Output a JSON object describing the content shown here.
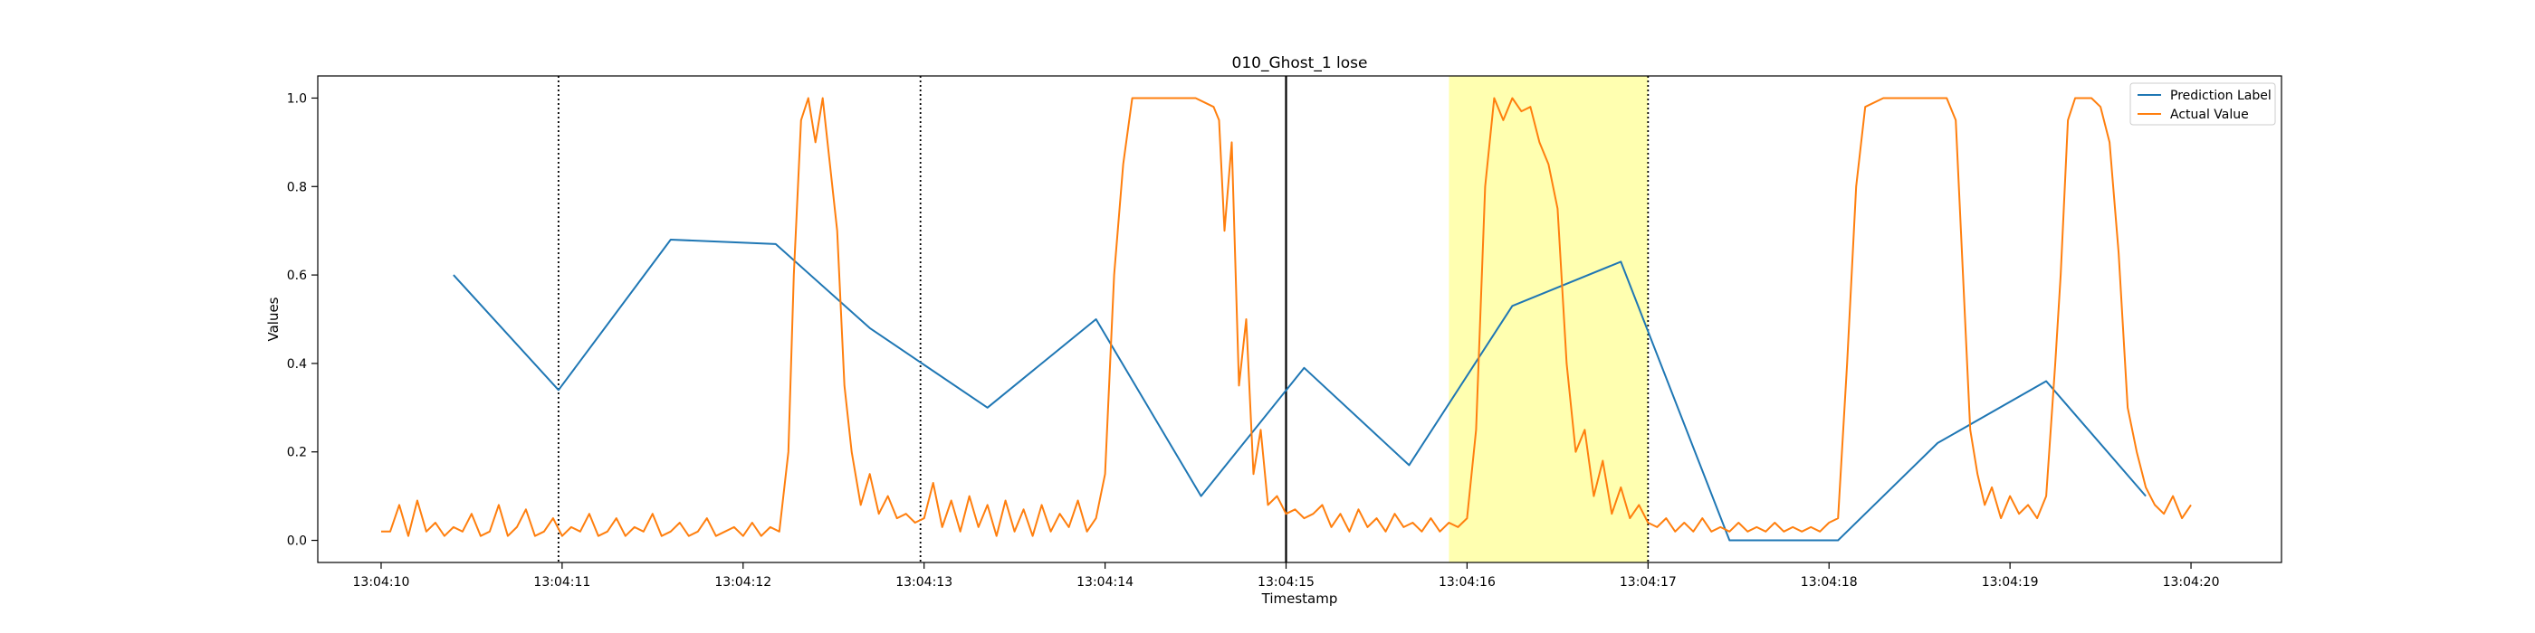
{
  "chart_data": {
    "type": "line",
    "title": "010_Ghost_1 lose",
    "xlabel": "Timestamp",
    "ylabel": "Values",
    "xlim": [
      "13:04:09.65",
      "13:04:20.50"
    ],
    "ylim": [
      -0.05,
      1.05
    ],
    "x_ticks": [
      "13:04:10",
      "13:04:11",
      "13:04:12",
      "13:04:13",
      "13:04:14",
      "13:04:15",
      "13:04:16",
      "13:04:17",
      "13:04:18",
      "13:04:19",
      "13:04:20"
    ],
    "y_ticks": [
      "0.0",
      "0.2",
      "0.4",
      "0.6",
      "0.8",
      "1.0"
    ],
    "grid": false,
    "legend_position": "top-right",
    "highlight_span": {
      "x_start": "13:04:15.90",
      "x_end": "13:04:17.00",
      "color": "#ffffb0"
    },
    "vertical_lines": [
      {
        "x": "13:04:10.98",
        "style": "dotted",
        "color": "#000000"
      },
      {
        "x": "13:04:12.98",
        "style": "dotted",
        "color": "#000000"
      },
      {
        "x": "13:04:15.00",
        "style": "solid",
        "color": "#000000"
      },
      {
        "x": "13:04:17.00",
        "style": "dotted",
        "color": "#000000"
      }
    ],
    "series": [
      {
        "name": "Prediction Label",
        "color": "#1f77b4",
        "x": [
          "13:04:10.40",
          "13:04:10.98",
          "13:04:11.60",
          "13:04:12.18",
          "13:04:12.70",
          "13:04:13.35",
          "13:04:13.95",
          "13:04:14.53",
          "13:04:15.10",
          "13:04:15.68",
          "13:04:16.25",
          "13:04:16.85",
          "13:04:17.45",
          "13:04:18.05",
          "13:04:18.60",
          "13:04:19.20",
          "13:04:19.75"
        ],
        "y": [
          0.6,
          0.34,
          0.68,
          0.67,
          0.48,
          0.3,
          0.5,
          0.1,
          0.39,
          0.17,
          0.53,
          0.63,
          0.0,
          0.0,
          0.22,
          0.36,
          0.1
        ]
      },
      {
        "name": "Actual Value",
        "color": "#ff7f0e",
        "x": [
          "13:04:10.00",
          "13:04:10.05",
          "13:04:10.10",
          "13:04:10.15",
          "13:04:10.20",
          "13:04:10.25",
          "13:04:10.30",
          "13:04:10.35",
          "13:04:10.40",
          "13:04:10.45",
          "13:04:10.50",
          "13:04:10.55",
          "13:04:10.60",
          "13:04:10.65",
          "13:04:10.70",
          "13:04:10.75",
          "13:04:10.80",
          "13:04:10.85",
          "13:04:10.90",
          "13:04:10.95",
          "13:04:11.00",
          "13:04:11.05",
          "13:04:11.10",
          "13:04:11.15",
          "13:04:11.20",
          "13:04:11.25",
          "13:04:11.30",
          "13:04:11.35",
          "13:04:11.40",
          "13:04:11.45",
          "13:04:11.50",
          "13:04:11.55",
          "13:04:11.60",
          "13:04:11.65",
          "13:04:11.70",
          "13:04:11.75",
          "13:04:11.80",
          "13:04:11.85",
          "13:04:11.90",
          "13:04:11.95",
          "13:04:12.00",
          "13:04:12.05",
          "13:04:12.10",
          "13:04:12.15",
          "13:04:12.20",
          "13:04:12.25",
          "13:04:12.28",
          "13:04:12.32",
          "13:04:12.36",
          "13:04:12.40",
          "13:04:12.44",
          "13:04:12.48",
          "13:04:12.52",
          "13:04:12.56",
          "13:04:12.60",
          "13:04:12.65",
          "13:04:12.70",
          "13:04:12.75",
          "13:04:12.80",
          "13:04:12.85",
          "13:04:12.90",
          "13:04:12.95",
          "13:04:13.00",
          "13:04:13.05",
          "13:04:13.10",
          "13:04:13.15",
          "13:04:13.20",
          "13:04:13.25",
          "13:04:13.30",
          "13:04:13.35",
          "13:04:13.40",
          "13:04:13.45",
          "13:04:13.50",
          "13:04:13.55",
          "13:04:13.60",
          "13:04:13.65",
          "13:04:13.70",
          "13:04:13.75",
          "13:04:13.80",
          "13:04:13.85",
          "13:04:13.90",
          "13:04:13.95",
          "13:04:14.00",
          "13:04:14.05",
          "13:04:14.10",
          "13:04:14.15",
          "13:04:14.20",
          "13:04:14.30",
          "13:04:14.40",
          "13:04:14.50",
          "13:04:14.55",
          "13:04:14.60",
          "13:04:14.63",
          "13:04:14.66",
          "13:04:14.70",
          "13:04:14.74",
          "13:04:14.78",
          "13:04:14.82",
          "13:04:14.86",
          "13:04:14.90",
          "13:04:14.95",
          "13:04:15.00",
          "13:04:15.05",
          "13:04:15.10",
          "13:04:15.15",
          "13:04:15.20",
          "13:04:15.25",
          "13:04:15.30",
          "13:04:15.35",
          "13:04:15.40",
          "13:04:15.45",
          "13:04:15.50",
          "13:04:15.55",
          "13:04:15.60",
          "13:04:15.65",
          "13:04:15.70",
          "13:04:15.75",
          "13:04:15.80",
          "13:04:15.85",
          "13:04:15.90",
          "13:04:15.95",
          "13:04:16.00",
          "13:04:16.05",
          "13:04:16.10",
          "13:04:16.15",
          "13:04:16.20",
          "13:04:16.25",
          "13:04:16.30",
          "13:04:16.35",
          "13:04:16.40",
          "13:04:16.45",
          "13:04:16.50",
          "13:04:16.55",
          "13:04:16.60",
          "13:04:16.65",
          "13:04:16.70",
          "13:04:16.75",
          "13:04:16.80",
          "13:04:16.85",
          "13:04:16.90",
          "13:04:16.95",
          "13:04:17.00",
          "13:04:17.05",
          "13:04:17.10",
          "13:04:17.15",
          "13:04:17.20",
          "13:04:17.25",
          "13:04:17.30",
          "13:04:17.35",
          "13:04:17.40",
          "13:04:17.45",
          "13:04:17.50",
          "13:04:17.55",
          "13:04:17.60",
          "13:04:17.65",
          "13:04:17.70",
          "13:04:17.75",
          "13:04:17.80",
          "13:04:17.85",
          "13:04:17.90",
          "13:04:17.95",
          "13:04:18.00",
          "13:04:18.05",
          "13:04:18.10",
          "13:04:18.15",
          "13:04:18.20",
          "13:04:18.30",
          "13:04:18.40",
          "13:04:18.50",
          "13:04:18.60",
          "13:04:18.65",
          "13:04:18.70",
          "13:04:18.74",
          "13:04:18.78",
          "13:04:18.82",
          "13:04:18.86",
          "13:04:18.90",
          "13:04:18.95",
          "13:04:19.00",
          "13:04:19.05",
          "13:04:19.10",
          "13:04:19.15",
          "13:04:19.20",
          "13:04:19.25",
          "13:04:19.28",
          "13:04:19.32",
          "13:04:19.36",
          "13:04:19.40",
          "13:04:19.45",
          "13:04:19.50",
          "13:04:19.55",
          "13:04:19.60",
          "13:04:19.65",
          "13:04:19.70",
          "13:04:19.75",
          "13:04:19.80",
          "13:04:19.85",
          "13:04:19.90",
          "13:04:19.95",
          "13:04:20.00"
        ],
        "y": [
          0.02,
          0.02,
          0.08,
          0.01,
          0.09,
          0.02,
          0.04,
          0.01,
          0.03,
          0.02,
          0.06,
          0.01,
          0.02,
          0.08,
          0.01,
          0.03,
          0.07,
          0.01,
          0.02,
          0.05,
          0.01,
          0.03,
          0.02,
          0.06,
          0.01,
          0.02,
          0.05,
          0.01,
          0.03,
          0.02,
          0.06,
          0.01,
          0.02,
          0.04,
          0.01,
          0.02,
          0.05,
          0.01,
          0.02,
          0.03,
          0.01,
          0.04,
          0.01,
          0.03,
          0.02,
          0.2,
          0.6,
          0.95,
          1.0,
          0.9,
          1.0,
          0.85,
          0.7,
          0.35,
          0.2,
          0.08,
          0.15,
          0.06,
          0.1,
          0.05,
          0.06,
          0.04,
          0.05,
          0.13,
          0.03,
          0.09,
          0.02,
          0.1,
          0.03,
          0.08,
          0.01,
          0.09,
          0.02,
          0.07,
          0.01,
          0.08,
          0.02,
          0.06,
          0.03,
          0.09,
          0.02,
          0.05,
          0.15,
          0.6,
          0.85,
          1.0,
          1.0,
          1.0,
          1.0,
          1.0,
          0.99,
          0.98,
          0.95,
          0.7,
          0.9,
          0.35,
          0.5,
          0.15,
          0.25,
          0.08,
          0.1,
          0.06,
          0.07,
          0.05,
          0.06,
          0.08,
          0.03,
          0.06,
          0.02,
          0.07,
          0.03,
          0.05,
          0.02,
          0.06,
          0.03,
          0.04,
          0.02,
          0.05,
          0.02,
          0.04,
          0.03,
          0.05,
          0.25,
          0.8,
          1.0,
          0.95,
          1.0,
          0.97,
          0.98,
          0.9,
          0.85,
          0.75,
          0.4,
          0.2,
          0.25,
          0.1,
          0.18,
          0.06,
          0.12,
          0.05,
          0.08,
          0.04,
          0.03,
          0.05,
          0.02,
          0.04,
          0.02,
          0.05,
          0.02,
          0.03,
          0.02,
          0.04,
          0.02,
          0.03,
          0.02,
          0.04,
          0.02,
          0.03,
          0.02,
          0.03,
          0.02,
          0.04,
          0.05,
          0.4,
          0.8,
          0.98,
          1.0,
          1.0,
          1.0,
          1.0,
          1.0,
          0.95,
          0.6,
          0.25,
          0.15,
          0.08,
          0.12,
          0.05,
          0.1,
          0.06,
          0.08,
          0.05,
          0.1,
          0.4,
          0.6,
          0.95,
          1.0,
          1.0,
          1.0,
          0.98,
          0.9,
          0.65,
          0.3,
          0.2,
          0.12,
          0.08,
          0.06,
          0.1,
          0.05,
          0.08
        ]
      }
    ]
  }
}
